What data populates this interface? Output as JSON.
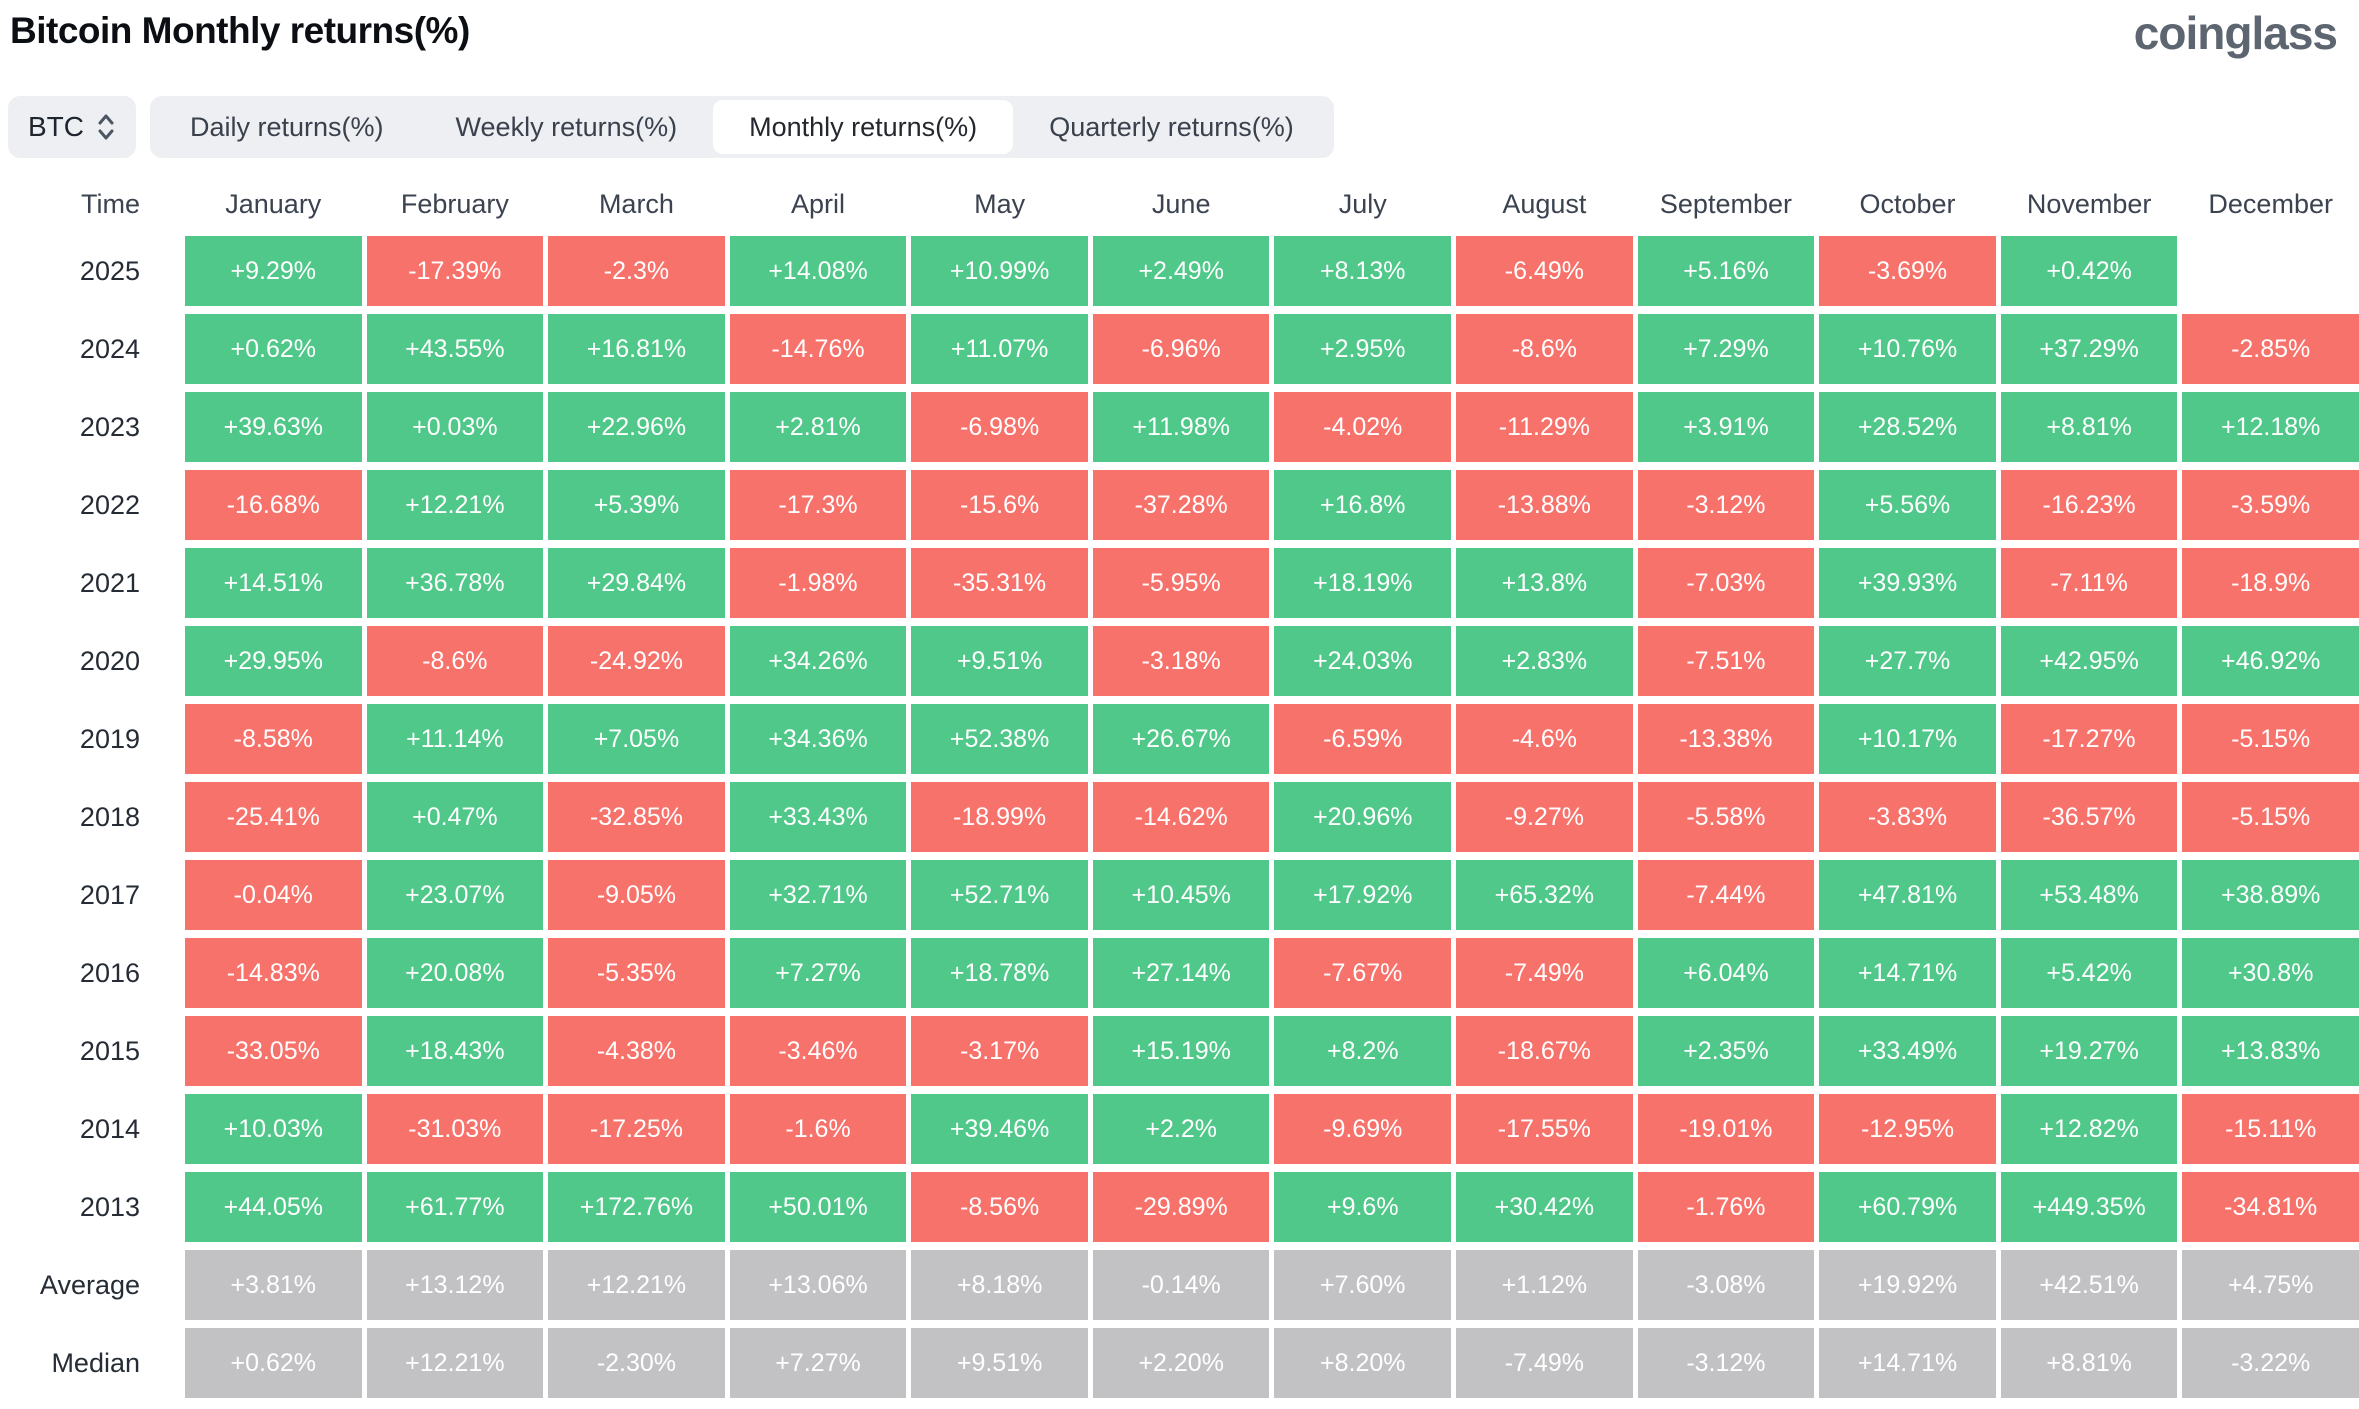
{
  "page": {
    "title": "Bitcoin Monthly returns(%)",
    "logo": "coinglass"
  },
  "controls": {
    "symbol_selector": {
      "label": "BTC",
      "icon": "updown-chevron-icon"
    },
    "tabs": [
      {
        "label": "Daily returns(%)",
        "active": false
      },
      {
        "label": "Weekly returns(%)",
        "active": false
      },
      {
        "label": "Monthly returns(%)",
        "active": true
      },
      {
        "label": "Quarterly returns(%)",
        "active": false
      }
    ]
  },
  "chart_data": {
    "type": "heatmap",
    "title": "Bitcoin Monthly returns(%)",
    "legend_position": "none",
    "grid": false,
    "columns": [
      "Time",
      "January",
      "February",
      "March",
      "April",
      "May",
      "June",
      "July",
      "August",
      "September",
      "October",
      "November",
      "December"
    ],
    "rows": [
      {
        "label": "2025",
        "summary": false,
        "values": [
          "+9.29%",
          "-17.39%",
          "-2.3%",
          "+14.08%",
          "+10.99%",
          "+2.49%",
          "+8.13%",
          "-6.49%",
          "+5.16%",
          "-3.69%",
          "+0.42%",
          ""
        ]
      },
      {
        "label": "2024",
        "summary": false,
        "values": [
          "+0.62%",
          "+43.55%",
          "+16.81%",
          "-14.76%",
          "+11.07%",
          "-6.96%",
          "+2.95%",
          "-8.6%",
          "+7.29%",
          "+10.76%",
          "+37.29%",
          "-2.85%"
        ]
      },
      {
        "label": "2023",
        "summary": false,
        "values": [
          "+39.63%",
          "+0.03%",
          "+22.96%",
          "+2.81%",
          "-6.98%",
          "+11.98%",
          "-4.02%",
          "-11.29%",
          "+3.91%",
          "+28.52%",
          "+8.81%",
          "+12.18%"
        ]
      },
      {
        "label": "2022",
        "summary": false,
        "values": [
          "-16.68%",
          "+12.21%",
          "+5.39%",
          "-17.3%",
          "-15.6%",
          "-37.28%",
          "+16.8%",
          "-13.88%",
          "-3.12%",
          "+5.56%",
          "-16.23%",
          "-3.59%"
        ]
      },
      {
        "label": "2021",
        "summary": false,
        "values": [
          "+14.51%",
          "+36.78%",
          "+29.84%",
          "-1.98%",
          "-35.31%",
          "-5.95%",
          "+18.19%",
          "+13.8%",
          "-7.03%",
          "+39.93%",
          "-7.11%",
          "-18.9%"
        ]
      },
      {
        "label": "2020",
        "summary": false,
        "values": [
          "+29.95%",
          "-8.6%",
          "-24.92%",
          "+34.26%",
          "+9.51%",
          "-3.18%",
          "+24.03%",
          "+2.83%",
          "-7.51%",
          "+27.7%",
          "+42.95%",
          "+46.92%"
        ]
      },
      {
        "label": "2019",
        "summary": false,
        "values": [
          "-8.58%",
          "+11.14%",
          "+7.05%",
          "+34.36%",
          "+52.38%",
          "+26.67%",
          "-6.59%",
          "-4.6%",
          "-13.38%",
          "+10.17%",
          "-17.27%",
          "-5.15%"
        ]
      },
      {
        "label": "2018",
        "summary": false,
        "values": [
          "-25.41%",
          "+0.47%",
          "-32.85%",
          "+33.43%",
          "-18.99%",
          "-14.62%",
          "+20.96%",
          "-9.27%",
          "-5.58%",
          "-3.83%",
          "-36.57%",
          "-5.15%"
        ]
      },
      {
        "label": "2017",
        "summary": false,
        "values": [
          "-0.04%",
          "+23.07%",
          "-9.05%",
          "+32.71%",
          "+52.71%",
          "+10.45%",
          "+17.92%",
          "+65.32%",
          "-7.44%",
          "+47.81%",
          "+53.48%",
          "+38.89%"
        ]
      },
      {
        "label": "2016",
        "summary": false,
        "values": [
          "-14.83%",
          "+20.08%",
          "-5.35%",
          "+7.27%",
          "+18.78%",
          "+27.14%",
          "-7.67%",
          "-7.49%",
          "+6.04%",
          "+14.71%",
          "+5.42%",
          "+30.8%"
        ]
      },
      {
        "label": "2015",
        "summary": false,
        "values": [
          "-33.05%",
          "+18.43%",
          "-4.38%",
          "-3.46%",
          "-3.17%",
          "+15.19%",
          "+8.2%",
          "-18.67%",
          "+2.35%",
          "+33.49%",
          "+19.27%",
          "+13.83%"
        ]
      },
      {
        "label": "2014",
        "summary": false,
        "values": [
          "+10.03%",
          "-31.03%",
          "-17.25%",
          "-1.6%",
          "+39.46%",
          "+2.2%",
          "-9.69%",
          "-17.55%",
          "-19.01%",
          "-12.95%",
          "+12.82%",
          "-15.11%"
        ]
      },
      {
        "label": "2013",
        "summary": false,
        "values": [
          "+44.05%",
          "+61.77%",
          "+172.76%",
          "+50.01%",
          "-8.56%",
          "-29.89%",
          "+9.6%",
          "+30.42%",
          "-1.76%",
          "+60.79%",
          "+449.35%",
          "-34.81%"
        ]
      },
      {
        "label": "Average",
        "summary": true,
        "values": [
          "+3.81%",
          "+13.12%",
          "+12.21%",
          "+13.06%",
          "+8.18%",
          "-0.14%",
          "+7.60%",
          "+1.12%",
          "-3.08%",
          "+19.92%",
          "+42.51%",
          "+4.75%"
        ]
      },
      {
        "label": "Median",
        "summary": true,
        "values": [
          "+0.62%",
          "+12.21%",
          "-2.30%",
          "+7.27%",
          "+9.51%",
          "+2.20%",
          "+8.20%",
          "-7.49%",
          "-3.12%",
          "+14.71%",
          "+8.81%",
          "-3.22%"
        ]
      }
    ],
    "colors": {
      "positive": "#4fc88a",
      "negative": "#f8726c",
      "summary": "#c2c2c4",
      "empty": "#ffffff",
      "chrome": "#edeff2"
    }
  }
}
